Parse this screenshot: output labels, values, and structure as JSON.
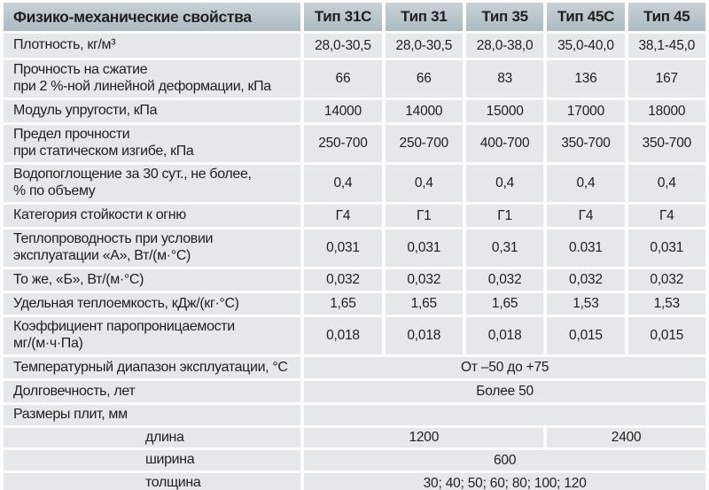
{
  "colors": {
    "header_bg_top": "#c8d1d7",
    "header_bg_bottom": "#adbac2",
    "cell_bg": "#e5e7e9",
    "gap": "#fdfdfd",
    "text": "#1f1f1f"
  },
  "table": {
    "title": "Физико-механические свойства",
    "columns": [
      "Тип 31С",
      "Тип 31",
      "Тип 35",
      "Тип 45С",
      "Тип 45"
    ],
    "rows": [
      {
        "label": "Плотность, кг/м³",
        "values": [
          "28,0-30,5",
          "28,0-30,5",
          "28,0-38,0",
          "35,0-40,0",
          "38,1-45,0"
        ]
      },
      {
        "label": "Прочность на сжатие\nпри 2 %-ной линейной деформации, кПа",
        "values": [
          "66",
          "66",
          "83",
          "136",
          "167"
        ]
      },
      {
        "label": "Модуль упругости, кПа",
        "values": [
          "14000",
          "14000",
          "15000",
          "17000",
          "18000"
        ]
      },
      {
        "label": "Предел прочности\nпри статическом изгибе, кПа",
        "values": [
          "250-700",
          "250-700",
          "400-700",
          "350-700",
          "350-700"
        ]
      },
      {
        "label": "Водопоглощение за 30 сут., не более,\n% по объему",
        "values": [
          "0,4",
          "0,4",
          "0,4",
          "0,4",
          "0,4"
        ]
      },
      {
        "label": "Категория стойкости к огню",
        "values": [
          "Г4",
          "Г1",
          "Г1",
          "Г4",
          "Г4"
        ]
      },
      {
        "label": "Теплопроводность при условии\nэксплуатации «А», Вт/(м·°С)",
        "values": [
          "0,031",
          "0,031",
          "0,31",
          "0.031",
          "0,031"
        ]
      },
      {
        "label": "То же, «Б», Вт/(м·°С)",
        "values": [
          "0,032",
          "0,032",
          "0,032",
          "0,032",
          "0,032"
        ]
      },
      {
        "label": "Удельная теплоемкость, кДж/(кг·°С)",
        "values": [
          "1,65",
          "1,65",
          "1,65",
          "1,53",
          "1,53"
        ]
      },
      {
        "label": "Коэффициент паропроницаемости\nмг/(м·ч·Па)",
        "values": [
          "0,018",
          "0,018",
          "0,018",
          "0,015",
          "0,015"
        ]
      },
      {
        "label": "Температурный диапазон эксплуатации, °С",
        "span_value": "От –50 до +75"
      },
      {
        "label": "Долговечность, лет",
        "span_value": "Более 50"
      },
      {
        "label": "Размеры плит, мм",
        "span_value": ""
      },
      {
        "label": "длина",
        "span3_value": "1200",
        "span2_value": "2400"
      },
      {
        "label": "ширина",
        "span_value": "600"
      },
      {
        "label": "толщина",
        "span_value": "30; 40; 50; 60; 80; 100; 120"
      }
    ]
  }
}
